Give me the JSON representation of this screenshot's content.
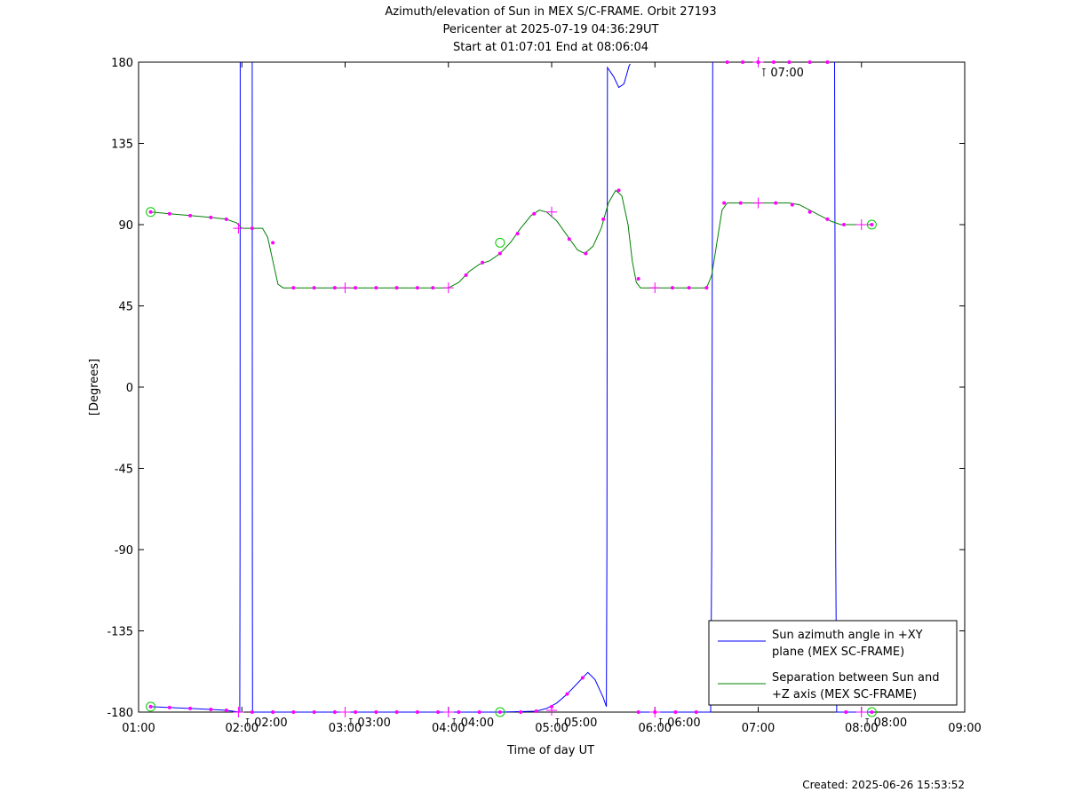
{
  "chart_data": {
    "type": "line",
    "title_lines": [
      "Azimuth/elevation of Sun in MEX S/C-FRAME.  Orbit 27193",
      "Pericenter at 2025-07-19 04:36:29UT",
      "Start at 01:07:01 End at 08:06:04"
    ],
    "xlabel": "Time of day UT",
    "ylabel": "[Degrees]",
    "xlim": [
      1.0,
      9.0
    ],
    "ylim": [
      -180,
      180
    ],
    "xticks": [
      {
        "v": 1,
        "label": "01:00"
      },
      {
        "v": 2,
        "label": "02:00"
      },
      {
        "v": 3,
        "label": "03:00"
      },
      {
        "v": 4,
        "label": "04:00"
      },
      {
        "v": 5,
        "label": "05:00"
      },
      {
        "v": 6,
        "label": "06:00"
      },
      {
        "v": 7,
        "label": "07:00"
      },
      {
        "v": 8,
        "label": "08:00"
      },
      {
        "v": 9,
        "label": "09:00"
      }
    ],
    "yticks": [
      {
        "v": 180,
        "label": "180"
      },
      {
        "v": 135,
        "label": "135"
      },
      {
        "v": 90,
        "label": "90"
      },
      {
        "v": 45,
        "label": "45"
      },
      {
        "v": 0,
        "label": "0"
      },
      {
        "v": -45,
        "label": "-45"
      },
      {
        "v": -90,
        "label": "-90"
      },
      {
        "v": -135,
        "label": "-135"
      },
      {
        "v": -180,
        "label": "-180"
      }
    ],
    "grid": false,
    "legend_placement": "bottom-right",
    "series": [
      {
        "name": "Sun azimuth angle in +XY plane (MEX SC-FRAME)",
        "legend_lines": [
          "Sun azimuth angle in +XY",
          "plane (MEX SC-FRAME)"
        ],
        "color": "#0000ff",
        "segments": [
          [
            [
              1.117,
              -177
            ],
            [
              1.3,
              -177.5
            ],
            [
              1.5,
              -178
            ],
            [
              1.7,
              -178.5
            ],
            [
              1.85,
              -179
            ],
            [
              1.98,
              -180
            ],
            [
              1.982,
              -90
            ],
            [
              1.984,
              180
            ]
          ],
          [
            [
              2.1,
              180
            ],
            [
              2.102,
              -90
            ],
            [
              2.104,
              -180
            ],
            [
              2.5,
              -180
            ],
            [
              3.0,
              -180
            ],
            [
              3.5,
              -180
            ],
            [
              4.0,
              -180
            ],
            [
              4.5,
              -180
            ],
            [
              4.85,
              -179.5
            ],
            [
              4.95,
              -178
            ],
            [
              5.05,
              -175
            ],
            [
              5.15,
              -170
            ],
            [
              5.25,
              -164
            ],
            [
              5.35,
              -158
            ],
            [
              5.42,
              -162
            ],
            [
              5.5,
              -172
            ],
            [
              5.53,
              -177
            ],
            [
              5.535,
              -90
            ],
            [
              5.54,
              177
            ],
            [
              5.6,
              172
            ],
            [
              5.65,
              166
            ],
            [
              5.7,
              168
            ],
            [
              5.75,
              178
            ],
            [
              5.76,
              179
            ]
          ],
          [
            [
              5.84,
              -180
            ],
            [
              6.0,
              -180
            ],
            [
              6.2,
              -180
            ],
            [
              6.4,
              -180
            ],
            [
              6.54,
              -180
            ],
            [
              6.55,
              -90
            ],
            [
              6.56,
              180
            ]
          ],
          [
            [
              7.74,
              180
            ],
            [
              7.75,
              -90
            ],
            [
              7.76,
              -180
            ],
            [
              8.0,
              -180
            ],
            [
              8.1,
              -180
            ]
          ]
        ],
        "markers": [
          [
            1.117,
            -177
          ],
          [
            1.3,
            -177.5
          ],
          [
            1.5,
            -178
          ],
          [
            1.7,
            -178.5
          ],
          [
            1.85,
            -179
          ],
          [
            2.1,
            -180
          ],
          [
            2.3,
            -180
          ],
          [
            2.5,
            -180
          ],
          [
            2.7,
            -180
          ],
          [
            2.9,
            -180
          ],
          [
            3.1,
            -180
          ],
          [
            3.3,
            -180
          ],
          [
            3.5,
            -180
          ],
          [
            3.7,
            -180
          ],
          [
            3.9,
            -180
          ],
          [
            4.1,
            -180
          ],
          [
            4.3,
            -180
          ],
          [
            4.5,
            -180
          ],
          [
            4.7,
            -180
          ],
          [
            4.85,
            -179.5
          ],
          [
            5.0,
            -177
          ],
          [
            5.15,
            -170
          ],
          [
            5.3,
            -161
          ],
          [
            5.84,
            -180
          ],
          [
            6.0,
            -180
          ],
          [
            6.2,
            -180
          ],
          [
            6.4,
            -180
          ],
          [
            6.7,
            180
          ],
          [
            6.85,
            180
          ],
          [
            7.0,
            180
          ],
          [
            7.15,
            180
          ],
          [
            7.3,
            180
          ],
          [
            7.5,
            180
          ],
          [
            7.67,
            180
          ],
          [
            7.85,
            -180
          ],
          [
            8.1,
            -180
          ]
        ],
        "cross_markers": [
          [
            1.967,
            -180
          ],
          [
            3.0,
            -180
          ],
          [
            4.0,
            -180
          ],
          [
            5.0,
            -179
          ],
          [
            6.0,
            -180
          ],
          [
            7.0,
            180
          ],
          [
            8.0,
            -180
          ]
        ],
        "circle_markers": [
          [
            1.117,
            -177
          ],
          [
            4.5,
            -180
          ],
          [
            8.1,
            -180
          ]
        ]
      },
      {
        "name": "Separation between Sun and +Z axis (MEX SC-FRAME)",
        "legend_lines": [
          "Separation between Sun and",
          "+Z axis (MEX SC-FRAME)"
        ],
        "color": "#008000",
        "segments": [
          [
            [
              1.117,
              97
            ],
            [
              1.3,
              96
            ],
            [
              1.5,
              95
            ],
            [
              1.7,
              94
            ],
            [
              1.85,
              93
            ],
            [
              1.95,
              91
            ],
            [
              2.0,
              88
            ],
            [
              2.2,
              88
            ],
            [
              2.25,
              83
            ],
            [
              2.3,
              70
            ],
            [
              2.35,
              57
            ],
            [
              2.4,
              55
            ],
            [
              2.6,
              55
            ],
            [
              3.0,
              55
            ],
            [
              3.5,
              55
            ],
            [
              3.85,
              55
            ],
            [
              4.0,
              55
            ],
            [
              4.1,
              58
            ],
            [
              4.2,
              64
            ],
            [
              4.3,
              68
            ],
            [
              4.4,
              70
            ],
            [
              4.5,
              74
            ],
            [
              4.6,
              80
            ],
            [
              4.7,
              88
            ],
            [
              4.8,
              95
            ],
            [
              4.88,
              98
            ],
            [
              4.95,
              97
            ],
            [
              5.05,
              92
            ],
            [
              5.15,
              84
            ],
            [
              5.25,
              76
            ],
            [
              5.32,
              74
            ],
            [
              5.4,
              78
            ],
            [
              5.48,
              88
            ],
            [
              5.55,
              102
            ],
            [
              5.62,
              109
            ],
            [
              5.68,
              106
            ],
            [
              5.74,
              90
            ],
            [
              5.78,
              70
            ],
            [
              5.82,
              58
            ],
            [
              5.86,
              55
            ],
            [
              6.0,
              55
            ],
            [
              6.2,
              55
            ],
            [
              6.4,
              55
            ],
            [
              6.5,
              55
            ],
            [
              6.55,
              62
            ],
            [
              6.6,
              80
            ],
            [
              6.65,
              98
            ],
            [
              6.7,
              102
            ],
            [
              7.0,
              102
            ],
            [
              7.3,
              102
            ],
            [
              7.4,
              101
            ],
            [
              7.5,
              98
            ],
            [
              7.6,
              95
            ],
            [
              7.7,
              92
            ],
            [
              7.8,
              90
            ],
            [
              8.0,
              90
            ],
            [
              8.1,
              90
            ]
          ]
        ],
        "markers": [
          [
            1.117,
            97
          ],
          [
            1.3,
            96
          ],
          [
            1.5,
            95
          ],
          [
            1.7,
            94
          ],
          [
            1.85,
            93
          ],
          [
            2.1,
            88
          ],
          [
            2.3,
            80
          ],
          [
            2.5,
            55
          ],
          [
            2.7,
            55
          ],
          [
            2.9,
            55
          ],
          [
            3.1,
            55
          ],
          [
            3.3,
            55
          ],
          [
            3.5,
            55
          ],
          [
            3.7,
            55
          ],
          [
            3.85,
            55
          ],
          [
            4.17,
            62
          ],
          [
            4.33,
            69
          ],
          [
            4.5,
            74
          ],
          [
            4.67,
            85
          ],
          [
            4.83,
            96
          ],
          [
            5.17,
            82
          ],
          [
            5.33,
            74
          ],
          [
            5.5,
            93
          ],
          [
            5.65,
            109
          ],
          [
            5.84,
            60
          ],
          [
            6.17,
            55
          ],
          [
            6.33,
            55
          ],
          [
            6.5,
            55
          ],
          [
            6.67,
            102
          ],
          [
            6.83,
            102
          ],
          [
            7.17,
            102
          ],
          [
            7.33,
            101
          ],
          [
            7.5,
            97
          ],
          [
            7.67,
            93
          ],
          [
            7.83,
            90
          ],
          [
            8.1,
            90
          ]
        ],
        "cross_markers": [
          [
            1.967,
            88
          ],
          [
            3.0,
            55
          ],
          [
            4.0,
            55
          ],
          [
            5.0,
            97
          ],
          [
            6.0,
            55
          ],
          [
            7.0,
            102
          ],
          [
            8.0,
            90
          ]
        ],
        "circle_markers": [
          [
            1.117,
            97
          ],
          [
            4.5,
            80
          ],
          [
            8.1,
            90
          ]
        ]
      }
    ],
    "annotations": [
      {
        "x": 2.0,
        "y": -180,
        "text": "02:00"
      },
      {
        "x": 3.0,
        "y": -180,
        "text": "03:00"
      },
      {
        "x": 4.0,
        "y": -180,
        "text": "04:00"
      },
      {
        "x": 5.0,
        "y": -180,
        "text": "05:00"
      },
      {
        "x": 6.0,
        "y": -180,
        "text": "06:00"
      },
      {
        "x": 7.0,
        "y": 180,
        "text": "07:00"
      },
      {
        "x": 8.0,
        "y": -180,
        "text": "08:00"
      }
    ]
  },
  "footer": {
    "created": "Created: 2025-06-26 15:53:52"
  }
}
